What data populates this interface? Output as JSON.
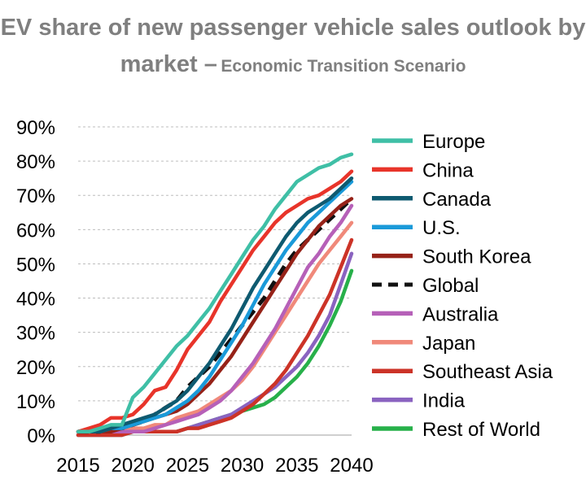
{
  "title_line1": "EV share of new passenger vehicle sales outlook by",
  "title_line2_main": "market –",
  "title_line2_sub": "Economic Transition Scenario",
  "chart_data": {
    "type": "line",
    "title": "EV share of new passenger vehicle sales outlook by market – Economic Transition Scenario",
    "xlabel": "",
    "ylabel": "",
    "xlim": [
      2015,
      2040
    ],
    "ylim": [
      0,
      90
    ],
    "x_ticks": [
      2015,
      2020,
      2025,
      2030,
      2035,
      2040
    ],
    "y_ticks": [
      "0%",
      "10%",
      "20%",
      "30%",
      "40%",
      "50%",
      "60%",
      "70%",
      "80%",
      "90%"
    ],
    "grid": "horizontal dashed",
    "legend_position": "right",
    "x": [
      2015,
      2016,
      2017,
      2018,
      2019,
      2020,
      2021,
      2022,
      2023,
      2024,
      2025,
      2026,
      2027,
      2028,
      2029,
      2030,
      2031,
      2032,
      2033,
      2034,
      2035,
      2036,
      2037,
      2038,
      2039,
      2040
    ],
    "series": [
      {
        "name": "Europe",
        "color": "#3fbfa6",
        "dashed": false,
        "values": [
          1,
          1,
          2,
          3,
          3,
          11,
          14,
          18,
          22,
          26,
          29,
          33,
          37,
          42,
          47,
          52,
          57,
          61,
          66,
          70,
          74,
          76,
          78,
          79,
          81,
          82
        ]
      },
      {
        "name": "China",
        "color": "#e8342a",
        "dashed": false,
        "values": [
          1,
          2,
          3,
          5,
          5,
          6,
          9,
          13,
          14,
          19,
          25,
          29,
          33,
          39,
          44,
          49,
          54,
          58,
          62,
          65,
          67,
          69,
          70,
          72,
          74,
          77
        ]
      },
      {
        "name": "Canada",
        "color": "#0e5a70",
        "dashed": false,
        "values": [
          1,
          1,
          1,
          2,
          3,
          4,
          5,
          6,
          8,
          10,
          13,
          17,
          21,
          26,
          31,
          37,
          43,
          48,
          53,
          58,
          62,
          65,
          67,
          69,
          72,
          75
        ]
      },
      {
        "name": "U.S.",
        "color": "#1a9ad9",
        "dashed": false,
        "values": [
          1,
          1,
          1,
          2,
          2,
          3,
          4,
          5,
          6,
          8,
          10,
          13,
          17,
          22,
          27,
          32,
          38,
          44,
          49,
          54,
          58,
          62,
          65,
          68,
          71,
          74
        ]
      },
      {
        "name": "South Korea",
        "color": "#962218",
        "dashed": false,
        "values": [
          1,
          1,
          1,
          1,
          2,
          3,
          4,
          5,
          6,
          7,
          9,
          12,
          15,
          19,
          23,
          28,
          33,
          38,
          43,
          48,
          53,
          57,
          61,
          64,
          67,
          69
        ]
      },
      {
        "name": "Global",
        "color": "#111111",
        "dashed": true,
        "values": [
          1,
          1,
          1,
          2,
          2,
          3,
          4,
          6,
          8,
          10,
          14,
          17,
          20,
          24,
          28,
          32,
          36,
          40,
          45,
          50,
          54,
          57,
          60,
          63,
          66,
          69
        ]
      },
      {
        "name": "Australia",
        "color": "#b660b8",
        "dashed": false,
        "values": [
          1,
          1,
          1,
          1,
          1,
          1,
          1,
          2,
          3,
          4,
          5,
          6,
          8,
          10,
          13,
          17,
          21,
          26,
          31,
          37,
          43,
          49,
          53,
          58,
          62,
          67
        ]
      },
      {
        "name": "Japan",
        "color": "#f0897a",
        "dashed": false,
        "values": [
          1,
          1,
          1,
          1,
          1,
          2,
          2,
          3,
          3,
          5,
          6,
          7,
          9,
          11,
          13,
          16,
          20,
          25,
          30,
          35,
          40,
          45,
          50,
          54,
          58,
          62
        ]
      },
      {
        "name": "Southeast Asia",
        "color": "#cc3327",
        "dashed": false,
        "values": [
          0,
          0,
          0,
          0,
          0,
          1,
          1,
          1,
          1,
          1,
          2,
          2,
          3,
          4,
          5,
          7,
          9,
          12,
          15,
          19,
          24,
          29,
          35,
          41,
          49,
          57
        ]
      },
      {
        "name": "India",
        "color": "#8a63c0",
        "dashed": false,
        "values": [
          0,
          0,
          0,
          0,
          0,
          1,
          1,
          1,
          1,
          1,
          2,
          3,
          4,
          5,
          6,
          8,
          10,
          12,
          14,
          17,
          20,
          24,
          29,
          35,
          44,
          53
        ]
      },
      {
        "name": "Rest of World",
        "color": "#27b04a",
        "dashed": false,
        "values": [
          0,
          0,
          0,
          0,
          0,
          1,
          1,
          1,
          1,
          1,
          2,
          3,
          4,
          5,
          6,
          7,
          8,
          9,
          11,
          14,
          17,
          21,
          26,
          32,
          39,
          48
        ]
      }
    ]
  }
}
